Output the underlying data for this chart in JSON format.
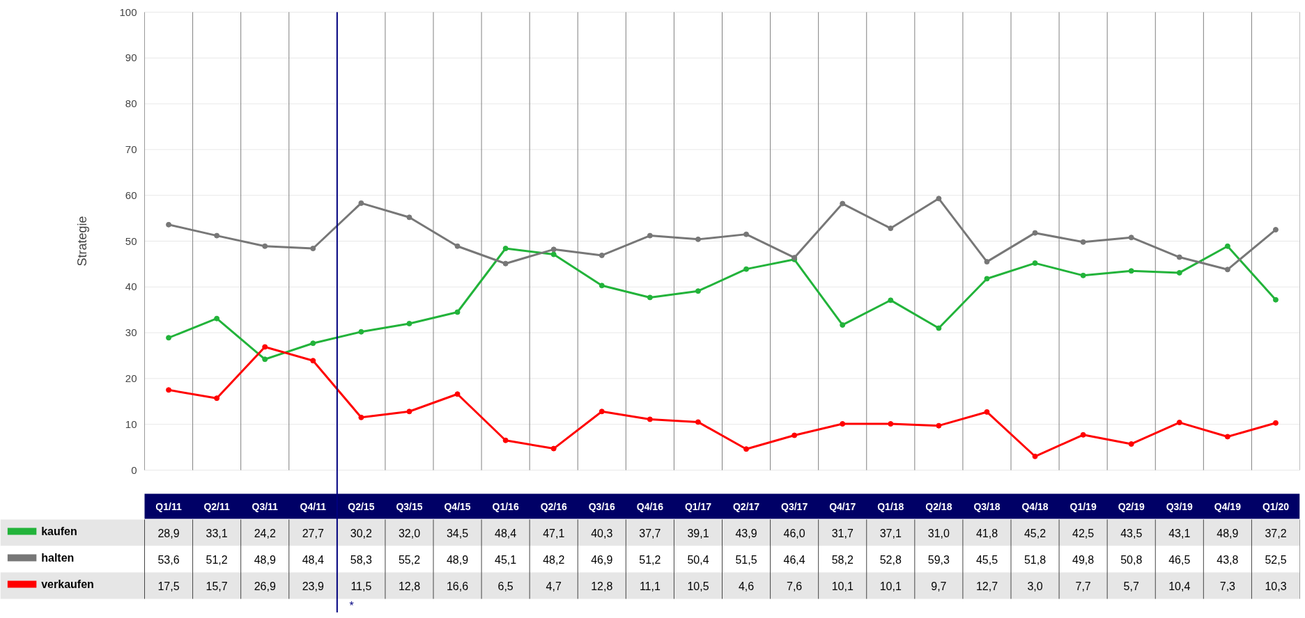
{
  "chart_data": {
    "type": "line",
    "ylabel": "Strategie",
    "categories": [
      "Q1/11",
      "Q2/11",
      "Q3/11",
      "Q4/11",
      "Q2/15",
      "Q3/15",
      "Q4/15",
      "Q1/16",
      "Q2/16",
      "Q3/16",
      "Q4/16",
      "Q1/17",
      "Q2/17",
      "Q3/17",
      "Q4/17",
      "Q1/18",
      "Q2/18",
      "Q3/18",
      "Q4/18",
      "Q1/19",
      "Q2/19",
      "Q3/19",
      "Q4/19",
      "Q1/20"
    ],
    "series": [
      {
        "name": "kaufen",
        "color": "#22b33a",
        "values": [
          28.9,
          33.1,
          24.2,
          27.7,
          30.2,
          32.0,
          34.5,
          48.4,
          47.1,
          40.3,
          37.7,
          39.1,
          43.9,
          46.0,
          31.7,
          37.1,
          31.0,
          41.8,
          45.2,
          42.5,
          43.5,
          43.1,
          48.9,
          37.2
        ],
        "value_labels": [
          "28,9",
          "33,1",
          "24,2",
          "27,7",
          "30,2",
          "32,0",
          "34,5",
          "48,4",
          "47,1",
          "40,3",
          "37,7",
          "39,1",
          "43,9",
          "46,0",
          "31,7",
          "37,1",
          "31,0",
          "41,8",
          "45,2",
          "42,5",
          "43,5",
          "43,1",
          "48,9",
          "37,2"
        ]
      },
      {
        "name": "halten",
        "color": "#777777",
        "values": [
          53.6,
          51.2,
          48.9,
          48.4,
          58.3,
          55.2,
          48.9,
          45.1,
          48.2,
          46.9,
          51.2,
          50.4,
          51.5,
          46.4,
          58.2,
          52.8,
          59.3,
          45.5,
          51.8,
          49.8,
          50.8,
          46.5,
          43.8,
          52.5
        ],
        "value_labels": [
          "53,6",
          "51,2",
          "48,9",
          "48,4",
          "58,3",
          "55,2",
          "48,9",
          "45,1",
          "48,2",
          "46,9",
          "51,2",
          "50,4",
          "51,5",
          "46,4",
          "58,2",
          "52,8",
          "59,3",
          "45,5",
          "51,8",
          "49,8",
          "50,8",
          "46,5",
          "43,8",
          "52,5"
        ]
      },
      {
        "name": "verkaufen",
        "color": "#ff0000",
        "values": [
          17.5,
          15.7,
          26.9,
          23.9,
          11.5,
          12.8,
          16.6,
          6.5,
          4.7,
          12.8,
          11.1,
          10.5,
          4.6,
          7.6,
          10.1,
          10.1,
          9.7,
          12.7,
          3.0,
          7.7,
          5.7,
          10.4,
          7.3,
          10.3
        ],
        "value_labels": [
          "17,5",
          "15,7",
          "26,9",
          "23,9",
          "11,5",
          "12,8",
          "16,6",
          "6,5",
          "4,7",
          "12,8",
          "11,1",
          "10,5",
          "4,6",
          "7,6",
          "10,1",
          "10,1",
          "9,7",
          "12,7",
          "3,0",
          "7,7",
          "5,7",
          "10,4",
          "7,3",
          "10,3"
        ]
      }
    ],
    "ylim": [
      0,
      100
    ],
    "yticks": [
      0,
      10,
      20,
      30,
      40,
      50,
      60,
      70,
      80,
      90,
      100
    ],
    "grid": true,
    "legend": "bottom left",
    "marker": "circle",
    "line_style": "solid",
    "ref_lines": [
      {
        "axis": "x",
        "value": "Q2/15",
        "label": "*",
        "color": "#000080"
      }
    ]
  }
}
